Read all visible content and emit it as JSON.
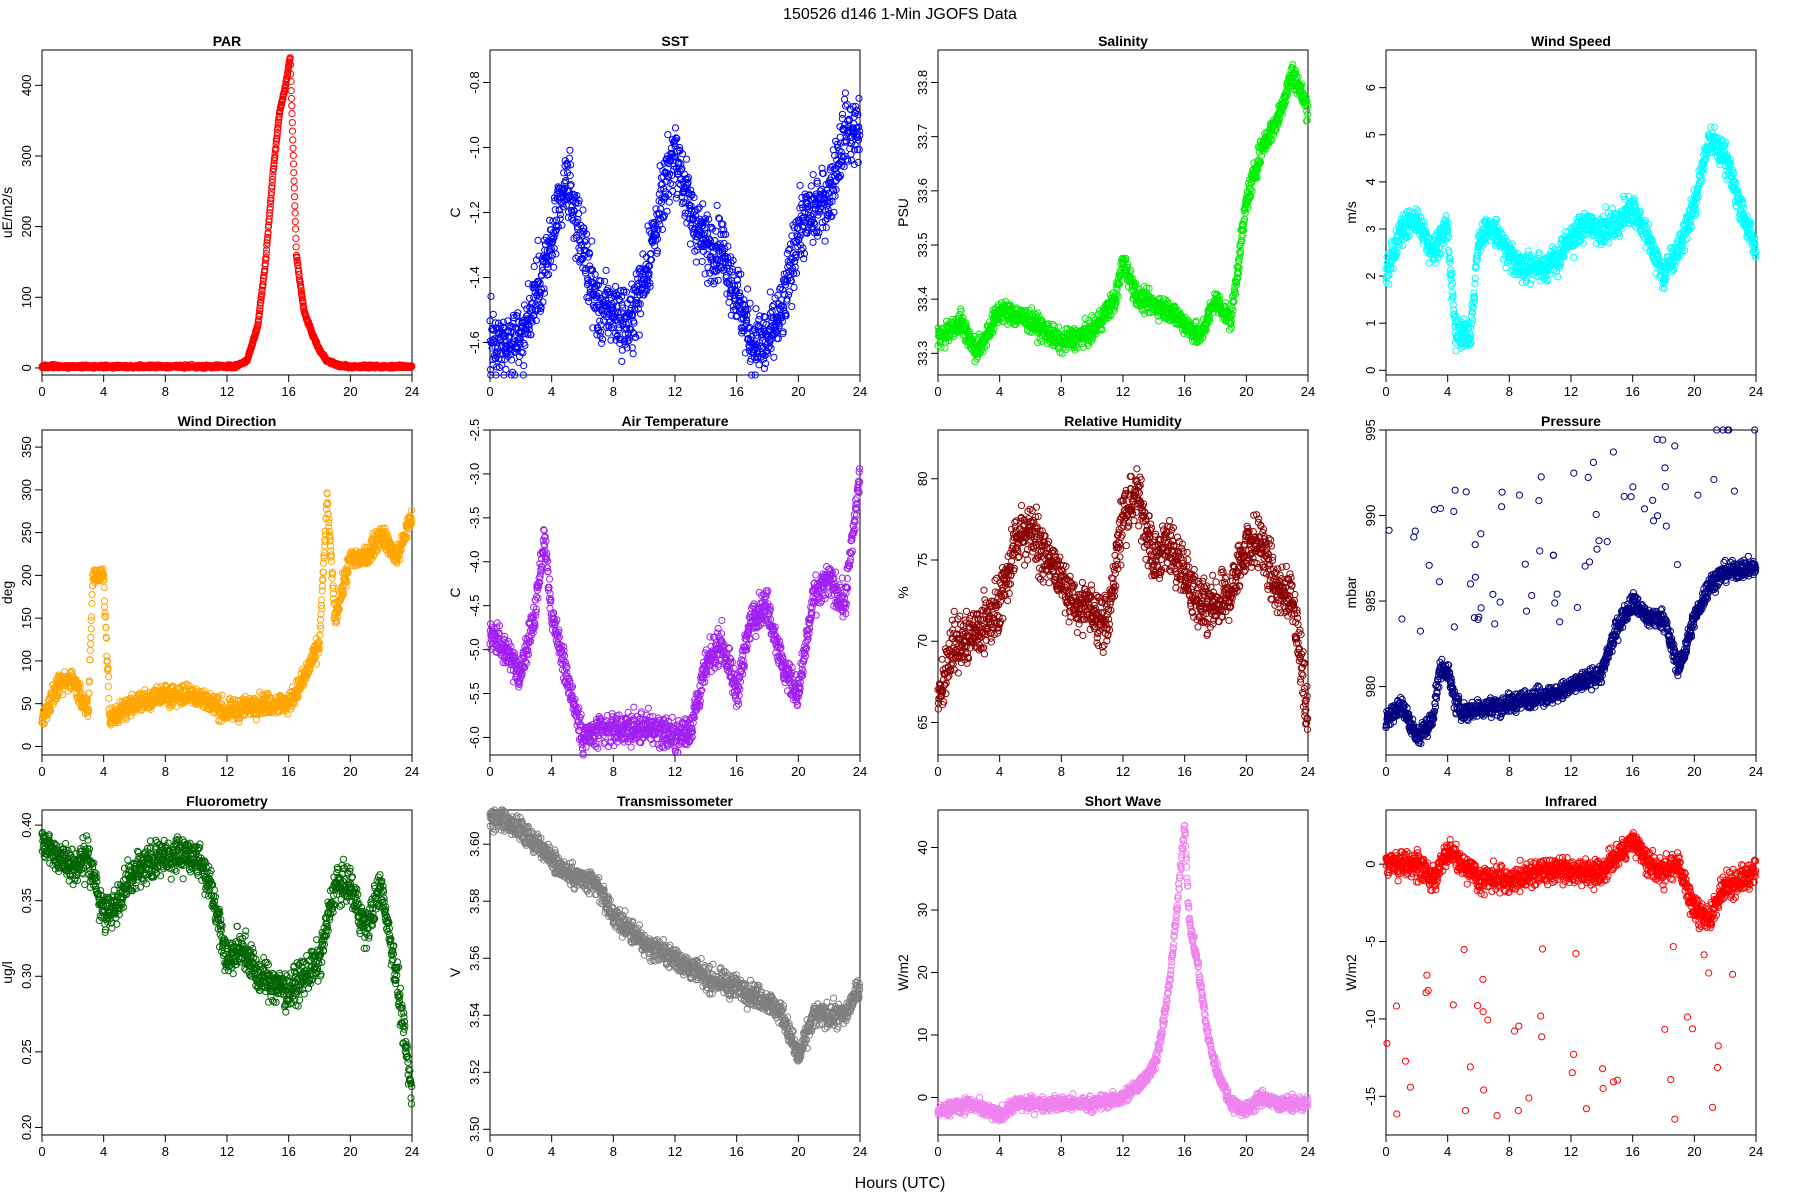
{
  "figure": {
    "title": "150526   d146   1-Min  JGOFS Data",
    "xlabel": "Hours (UTC)"
  },
  "chart_data": [
    {
      "type": "scatter",
      "title": "PAR",
      "ylabel": "uE/m2/s",
      "color": "#ff0000",
      "xlim": [
        0,
        24
      ],
      "xticks": [
        0,
        4,
        8,
        12,
        16,
        20,
        24
      ],
      "ylim": [
        -10,
        450
      ],
      "yticks": [
        0,
        100,
        200,
        300,
        400
      ],
      "anchors": [
        [
          0,
          2
        ],
        [
          12.5,
          2
        ],
        [
          13.3,
          10
        ],
        [
          14,
          60
        ],
        [
          14.5,
          150
        ],
        [
          15,
          280
        ],
        [
          15.4,
          360
        ],
        [
          15.8,
          400
        ],
        [
          16.1,
          440
        ],
        [
          16.3,
          300
        ],
        [
          16.5,
          160
        ],
        [
          17,
          80
        ],
        [
          17.5,
          50
        ],
        [
          18,
          25
        ],
        [
          18.5,
          10
        ],
        [
          19.3,
          3
        ],
        [
          20,
          2
        ],
        [
          24,
          2
        ]
      ],
      "noise": 2,
      "spikes": 0
    },
    {
      "type": "scatter",
      "title": "SST",
      "ylabel": "C",
      "color": "#0000ff",
      "xlim": [
        0,
        24
      ],
      "xticks": [
        0,
        4,
        8,
        12,
        16,
        20,
        24
      ],
      "ylim": [
        -1.7,
        -0.7
      ],
      "yticks": [
        -1.6,
        -1.4,
        -1.2,
        -1.0,
        -0.8
      ],
      "anchors": [
        [
          0,
          -1.6
        ],
        [
          2,
          -1.6
        ],
        [
          3,
          -1.45
        ],
        [
          4,
          -1.3
        ],
        [
          5,
          -1.1
        ],
        [
          6,
          -1.3
        ],
        [
          7,
          -1.5
        ],
        [
          8,
          -1.5
        ],
        [
          9,
          -1.55
        ],
        [
          10,
          -1.4
        ],
        [
          11,
          -1.2
        ],
        [
          12,
          -1.0
        ],
        [
          13,
          -1.2
        ],
        [
          14,
          -1.3
        ],
        [
          15,
          -1.3
        ],
        [
          16,
          -1.45
        ],
        [
          17,
          -1.6
        ],
        [
          18,
          -1.6
        ],
        [
          19,
          -1.5
        ],
        [
          20,
          -1.25
        ],
        [
          21,
          -1.2
        ],
        [
          22,
          -1.15
        ],
        [
          23,
          -0.95
        ],
        [
          24,
          -0.95
        ]
      ],
      "noise": 0.1,
      "spikes": 0
    },
    {
      "type": "scatter",
      "title": "Salinity",
      "ylabel": "PSU",
      "color": "#00ee00",
      "xlim": [
        0,
        24
      ],
      "xticks": [
        0,
        4,
        8,
        12,
        16,
        20,
        24
      ],
      "ylim": [
        33.26,
        33.86
      ],
      "yticks": [
        33.3,
        33.4,
        33.5,
        33.6,
        33.7,
        33.8
      ],
      "anchors": [
        [
          0,
          33.33
        ],
        [
          1.5,
          33.36
        ],
        [
          2.5,
          33.3
        ],
        [
          4,
          33.38
        ],
        [
          6,
          33.36
        ],
        [
          8,
          33.32
        ],
        [
          10,
          33.34
        ],
        [
          11.5,
          33.4
        ],
        [
          12,
          33.47
        ],
        [
          13,
          33.4
        ],
        [
          15,
          33.38
        ],
        [
          17,
          33.33
        ],
        [
          18,
          33.4
        ],
        [
          19,
          33.36
        ],
        [
          20,
          33.58
        ],
        [
          21,
          33.68
        ],
        [
          22,
          33.73
        ],
        [
          23,
          33.82
        ],
        [
          24,
          33.75
        ]
      ],
      "noise": 0.02,
      "spikes": 0
    },
    {
      "type": "scatter",
      "title": "Wind Speed",
      "ylabel": "m/s",
      "color": "#00ffff",
      "xlim": [
        0,
        24
      ],
      "xticks": [
        0,
        4,
        8,
        12,
        16,
        20,
        24
      ],
      "ylim": [
        -0.1,
        6.8
      ],
      "yticks": [
        0,
        1,
        2,
        3,
        4,
        5,
        6
      ],
      "anchors": [
        [
          0,
          2
        ],
        [
          1,
          3
        ],
        [
          2,
          3.2
        ],
        [
          3,
          2.5
        ],
        [
          4,
          3
        ],
        [
          4.5,
          0.8
        ],
        [
          5.5,
          0.8
        ],
        [
          6,
          2.8
        ],
        [
          7,
          3
        ],
        [
          8,
          2.4
        ],
        [
          9,
          2.2
        ],
        [
          10,
          2.2
        ],
        [
          11,
          2.3
        ],
        [
          12,
          2.8
        ],
        [
          13,
          3.1
        ],
        [
          14,
          3
        ],
        [
          15,
          3.1
        ],
        [
          16,
          3.5
        ],
        [
          17,
          2.8
        ],
        [
          18,
          2
        ],
        [
          19,
          2.6
        ],
        [
          20,
          3.5
        ],
        [
          21,
          5
        ],
        [
          22,
          4.5
        ],
        [
          23,
          3.5
        ],
        [
          24,
          2.5
        ]
      ],
      "noise": 0.3,
      "spikes": 0
    },
    {
      "type": "scatter",
      "title": "Wind Direction",
      "ylabel": "deg",
      "color": "#ffa500",
      "xlim": [
        0,
        24
      ],
      "xticks": [
        0,
        4,
        8,
        12,
        16,
        20,
        24
      ],
      "ylim": [
        -10,
        370
      ],
      "yticks": [
        0,
        50,
        100,
        150,
        200,
        250,
        300,
        350
      ],
      "anchors": [
        [
          0,
          30
        ],
        [
          1,
          70
        ],
        [
          2,
          80
        ],
        [
          3,
          40
        ],
        [
          3.3,
          200
        ],
        [
          4,
          200
        ],
        [
          4.4,
          30
        ],
        [
          5,
          40
        ],
        [
          6,
          50
        ],
        [
          8,
          60
        ],
        [
          10,
          60
        ],
        [
          12,
          40
        ],
        [
          14,
          50
        ],
        [
          16,
          50
        ],
        [
          17,
          80
        ],
        [
          18,
          120
        ],
        [
          18.5,
          290
        ],
        [
          19,
          150
        ],
        [
          20,
          220
        ],
        [
          21,
          220
        ],
        [
          22,
          250
        ],
        [
          23,
          220
        ],
        [
          24,
          270
        ]
      ],
      "noise": 12,
      "spikes": 0
    },
    {
      "type": "scatter",
      "title": "Air Temperature",
      "ylabel": "C",
      "color": "#a020f0",
      "xlim": [
        0,
        24
      ],
      "xticks": [
        0,
        4,
        8,
        12,
        16,
        20,
        24
      ],
      "ylim": [
        -6.2,
        -2.5
      ],
      "yticks": [
        -6.0,
        -5.5,
        -5.0,
        -4.5,
        -4.0,
        -3.5,
        -3.0,
        -2.5
      ],
      "anchors": [
        [
          0,
          -4.8
        ],
        [
          1,
          -5
        ],
        [
          2,
          -5.3
        ],
        [
          3,
          -4.5
        ],
        [
          3.5,
          -3.7
        ],
        [
          4,
          -4.6
        ],
        [
          5,
          -5.3
        ],
        [
          6,
          -6
        ],
        [
          8,
          -5.9
        ],
        [
          10,
          -5.9
        ],
        [
          11,
          -5.9
        ],
        [
          12,
          -6
        ],
        [
          13,
          -5.9
        ],
        [
          14,
          -5.2
        ],
        [
          15,
          -4.9
        ],
        [
          16,
          -5.5
        ],
        [
          17,
          -4.6
        ],
        [
          18,
          -4.5
        ],
        [
          19,
          -5.2
        ],
        [
          20,
          -5.5
        ],
        [
          21,
          -4.4
        ],
        [
          22,
          -4.2
        ],
        [
          23,
          -4.5
        ],
        [
          24,
          -3
        ]
      ],
      "noise": 0.18,
      "spikes": 0
    },
    {
      "type": "scatter",
      "title": "Relative Humidity",
      "ylabel": "%",
      "color": "#8b0000",
      "xlim": [
        0,
        24
      ],
      "xticks": [
        0,
        4,
        8,
        12,
        16,
        20,
        24
      ],
      "ylim": [
        63,
        83
      ],
      "yticks": [
        65,
        70,
        75,
        80
      ],
      "anchors": [
        [
          0,
          66
        ],
        [
          1,
          70
        ],
        [
          2,
          70
        ],
        [
          3,
          71
        ],
        [
          4,
          72
        ],
        [
          5,
          76
        ],
        [
          6,
          77
        ],
        [
          7,
          75
        ],
        [
          8,
          74
        ],
        [
          9,
          72
        ],
        [
          10,
          72
        ],
        [
          11,
          71
        ],
        [
          12,
          78
        ],
        [
          13,
          79
        ],
        [
          14,
          75
        ],
        [
          15,
          76
        ],
        [
          16,
          74
        ],
        [
          17,
          72
        ],
        [
          18,
          72
        ],
        [
          19,
          73
        ],
        [
          20,
          76
        ],
        [
          21,
          76
        ],
        [
          22,
          73
        ],
        [
          23,
          73
        ],
        [
          24,
          65
        ]
      ],
      "noise": 1.6,
      "spikes": 0
    },
    {
      "type": "scatter",
      "title": "Pressure",
      "ylabel": "mbar",
      "color": "#000080",
      "xlim": [
        0,
        24
      ],
      "xticks": [
        0,
        4,
        8,
        12,
        16,
        20,
        24
      ],
      "ylim": [
        976,
        995
      ],
      "yticks": [
        980,
        985,
        990,
        995
      ],
      "anchors": [
        [
          0,
          978
        ],
        [
          1,
          979
        ],
        [
          2,
          977
        ],
        [
          3,
          978
        ],
        [
          3.5,
          981
        ],
        [
          4,
          981
        ],
        [
          4.5,
          979
        ],
        [
          5,
          978.5
        ],
        [
          8,
          979
        ],
        [
          10,
          979.5
        ],
        [
          11,
          979.5
        ],
        [
          12,
          980
        ],
        [
          14,
          980.8
        ],
        [
          15,
          983.5
        ],
        [
          16,
          985
        ],
        [
          17,
          984
        ],
        [
          18,
          984
        ],
        [
          19,
          981
        ],
        [
          20,
          984
        ],
        [
          21,
          986
        ],
        [
          22,
          986.7
        ],
        [
          24,
          987
        ]
      ],
      "noise": 0.55,
      "spikes": 0.05,
      "spike_min": 4,
      "spike_max": 13
    },
    {
      "type": "scatter",
      "title": "Fluorometry",
      "ylabel": "ug/l",
      "color": "#006400",
      "xlim": [
        0,
        24
      ],
      "xticks": [
        0,
        4,
        8,
        12,
        16,
        20,
        24
      ],
      "ylim": [
        0.195,
        0.41
      ],
      "yticks": [
        0.2,
        0.25,
        0.3,
        0.35,
        0.4
      ],
      "anchors": [
        [
          0,
          0.39
        ],
        [
          2,
          0.37
        ],
        [
          3,
          0.38
        ],
        [
          4,
          0.34
        ],
        [
          5,
          0.35
        ],
        [
          6,
          0.37
        ],
        [
          8,
          0.38
        ],
        [
          10,
          0.38
        ],
        [
          11,
          0.36
        ],
        [
          12,
          0.31
        ],
        [
          13,
          0.32
        ],
        [
          14,
          0.3
        ],
        [
          16,
          0.29
        ],
        [
          18,
          0.31
        ],
        [
          19,
          0.36
        ],
        [
          20,
          0.36
        ],
        [
          21,
          0.33
        ],
        [
          22,
          0.36
        ],
        [
          23,
          0.3
        ],
        [
          24,
          0.22
        ]
      ],
      "noise": 0.012,
      "spikes": 0
    },
    {
      "type": "scatter",
      "title": "Transmissometer",
      "ylabel": "V",
      "color": "#7f7f7f",
      "xlim": [
        0,
        24
      ],
      "xticks": [
        0,
        4,
        8,
        12,
        16,
        20,
        24
      ],
      "ylim": [
        3.498,
        3.612
      ],
      "yticks": [
        3.5,
        3.52,
        3.54,
        3.56,
        3.58,
        3.6
      ],
      "anchors": [
        [
          0,
          3.61
        ],
        [
          2,
          3.605
        ],
        [
          3,
          3.6
        ],
        [
          5,
          3.59
        ],
        [
          7,
          3.585
        ],
        [
          8,
          3.575
        ],
        [
          10,
          3.565
        ],
        [
          12,
          3.56
        ],
        [
          14,
          3.553
        ],
        [
          16,
          3.55
        ],
        [
          18,
          3.545
        ],
        [
          19,
          3.54
        ],
        [
          20,
          3.525
        ],
        [
          21,
          3.54
        ],
        [
          23,
          3.54
        ],
        [
          24,
          3.55
        ]
      ],
      "noise": 0.004,
      "spikes": 0
    },
    {
      "type": "scatter",
      "title": "Short Wave",
      "ylabel": "W/m2",
      "color": "#ee82ee",
      "xlim": [
        0,
        24
      ],
      "xticks": [
        0,
        4,
        8,
        12,
        16,
        20,
        24
      ],
      "ylim": [
        -6,
        46
      ],
      "yticks": [
        0,
        10,
        20,
        30,
        40
      ],
      "anchors": [
        [
          0,
          -2
        ],
        [
          2,
          -1
        ],
        [
          4,
          -3
        ],
        [
          5,
          -1
        ],
        [
          8,
          -1
        ],
        [
          10,
          -1
        ],
        [
          12,
          0
        ],
        [
          13,
          2
        ],
        [
          14,
          5
        ],
        [
          14.5,
          10
        ],
        [
          15,
          18
        ],
        [
          15.5,
          30
        ],
        [
          16,
          44
        ],
        [
          16.3,
          28
        ],
        [
          16.8,
          22
        ],
        [
          17.5,
          10
        ],
        [
          18,
          5
        ],
        [
          19,
          -1
        ],
        [
          20,
          -2
        ],
        [
          21,
          0
        ],
        [
          22,
          -1
        ],
        [
          24,
          -1
        ]
      ],
      "noise": 1.1,
      "spikes": 0
    },
    {
      "type": "scatter",
      "title": "Infrared",
      "ylabel": "W/m2",
      "color": "#ff0000",
      "xlim": [
        0,
        24
      ],
      "xticks": [
        0,
        4,
        8,
        12,
        16,
        20,
        24
      ],
      "ylim": [
        -17.5,
        3.5
      ],
      "yticks": [
        -15,
        -10,
        -5,
        0
      ],
      "anchors": [
        [
          0,
          0
        ],
        [
          2,
          0
        ],
        [
          3,
          -1
        ],
        [
          4,
          1
        ],
        [
          5,
          0
        ],
        [
          6,
          -1
        ],
        [
          8,
          -1
        ],
        [
          10,
          -0.5
        ],
        [
          12,
          -0.5
        ],
        [
          14,
          -0.5
        ],
        [
          16,
          1.5
        ],
        [
          17,
          0
        ],
        [
          18,
          -0.5
        ],
        [
          19,
          0
        ],
        [
          20,
          -3
        ],
        [
          21,
          -3.5
        ],
        [
          22,
          -1.5
        ],
        [
          23,
          -1
        ],
        [
          24,
          -0.5
        ]
      ],
      "noise": 0.8,
      "spikes": 0.025,
      "spike_min": -17,
      "spike_max": -5
    }
  ]
}
